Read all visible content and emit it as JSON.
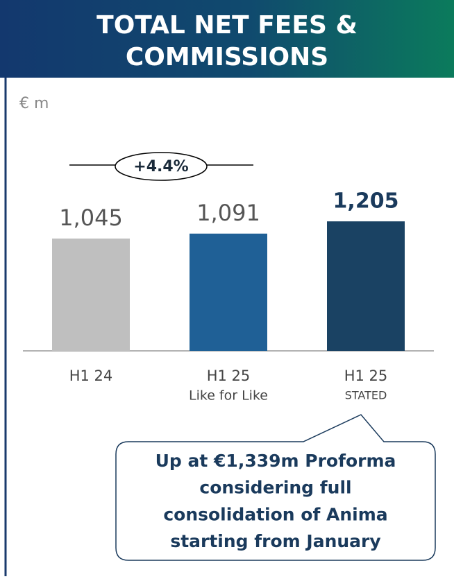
{
  "chart_data": {
    "type": "bar",
    "title_lines": [
      "TOTAL NET FEES &",
      "COMMISSIONS"
    ],
    "unit": "€ m",
    "categories": [
      "H1 24",
      "H1 25",
      "H1 25"
    ],
    "category_sublabels": [
      null,
      "Like for Like",
      "STATED"
    ],
    "values": [
      1045,
      1091,
      1205
    ],
    "value_labels": [
      "1,045",
      "1,091",
      "1,205"
    ],
    "bold_labels": [
      false,
      false,
      true
    ],
    "colors": [
      "#bfbfbf",
      "#1f6096",
      "#1a4263"
    ],
    "annotation": "+4.4%",
    "callout_lines": [
      "Up at €1,339m Proforma",
      "considering full",
      "consolidation of Anima",
      "starting from January"
    ]
  }
}
